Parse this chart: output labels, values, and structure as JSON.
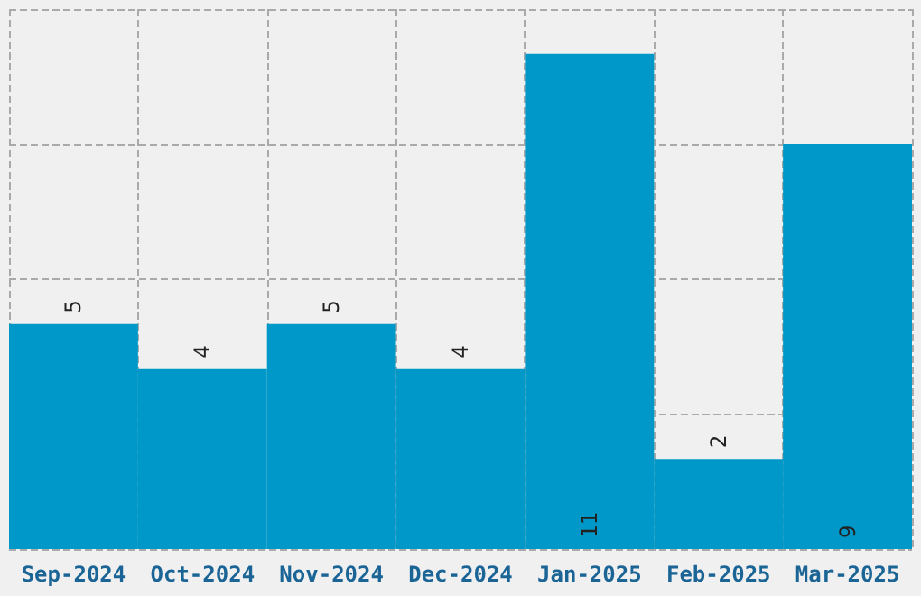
{
  "chart_data": {
    "type": "bar",
    "categories": [
      "Sep-2024",
      "Oct-2024",
      "Nov-2024",
      "Dec-2024",
      "Jan-2025",
      "Feb-2025",
      "Mar-2025"
    ],
    "values": [
      5,
      4,
      5,
      4,
      11,
      2,
      9
    ],
    "color": "#0098c8",
    "data_labels": true,
    "ylim": [
      0,
      12
    ],
    "yticks": [
      {
        "value": 0,
        "label": null
      },
      {
        "value": 3,
        "label": null
      },
      {
        "value": 6,
        "label": null
      },
      {
        "value": 9,
        "label": null
      },
      {
        "value": 12,
        "label": null
      }
    ],
    "tick_labels": "x",
    "grid": true
  }
}
